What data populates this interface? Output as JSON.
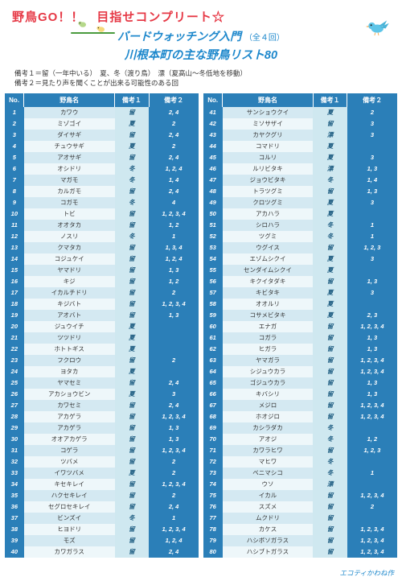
{
  "header": {
    "main_title": "野鳥GO！！　目指せコンプリート☆",
    "sub1": "バードウォッチング入門",
    "sub1_paren": "（全４回）",
    "sub2": "川根本町の主な野鳥リスト80"
  },
  "notes": {
    "line1": "備考１＝留（一年中いる）　夏、冬（渡り鳥）　漂（夏高山〜冬低地を移動）",
    "line2": "備考２＝見たり声を聞くことが出来る可能性のある回"
  },
  "columns": {
    "no": "No.",
    "name": "野鳥名",
    "b1": "備考１",
    "b2": "備考２"
  },
  "rows_left": [
    {
      "no": "1",
      "name": "カワウ",
      "b1": "留",
      "b2": "2, 4"
    },
    {
      "no": "2",
      "name": "ミゾゴイ",
      "b1": "夏",
      "b2": "2"
    },
    {
      "no": "3",
      "name": "ダイサギ",
      "b1": "留",
      "b2": "2, 4"
    },
    {
      "no": "4",
      "name": "チュウサギ",
      "b1": "夏",
      "b2": "2"
    },
    {
      "no": "5",
      "name": "アオサギ",
      "b1": "留",
      "b2": "2, 4"
    },
    {
      "no": "6",
      "name": "オシドリ",
      "b1": "冬",
      "b2": "1, 2, 4"
    },
    {
      "no": "7",
      "name": "マガモ",
      "b1": "冬",
      "b2": "1, 4"
    },
    {
      "no": "8",
      "name": "カルガモ",
      "b1": "留",
      "b2": "2, 4"
    },
    {
      "no": "9",
      "name": "コガモ",
      "b1": "冬",
      "b2": "4"
    },
    {
      "no": "10",
      "name": "トビ",
      "b1": "留",
      "b2": "1, 2, 3, 4"
    },
    {
      "no": "11",
      "name": "オオタカ",
      "b1": "留",
      "b2": "1, 2"
    },
    {
      "no": "12",
      "name": "ノスリ",
      "b1": "冬",
      "b2": "1"
    },
    {
      "no": "13",
      "name": "クマタカ",
      "b1": "留",
      "b2": "1, 3, 4"
    },
    {
      "no": "14",
      "name": "コジュケイ",
      "b1": "留",
      "b2": "1, 2, 4"
    },
    {
      "no": "15",
      "name": "ヤマドリ",
      "b1": "留",
      "b2": "1, 3"
    },
    {
      "no": "16",
      "name": "キジ",
      "b1": "留",
      "b2": "1, 2"
    },
    {
      "no": "17",
      "name": "イカルチドリ",
      "b1": "留",
      "b2": "2"
    },
    {
      "no": "18",
      "name": "キジバト",
      "b1": "留",
      "b2": "1, 2, 3, 4"
    },
    {
      "no": "19",
      "name": "アオバト",
      "b1": "留",
      "b2": "1, 3"
    },
    {
      "no": "20",
      "name": "ジュウイチ",
      "b1": "夏",
      "b2": ""
    },
    {
      "no": "21",
      "name": "ツツドリ",
      "b1": "夏",
      "b2": ""
    },
    {
      "no": "22",
      "name": "ホトトギス",
      "b1": "夏",
      "b2": ""
    },
    {
      "no": "23",
      "name": "フクロウ",
      "b1": "留",
      "b2": "2"
    },
    {
      "no": "24",
      "name": "ヨタカ",
      "b1": "夏",
      "b2": ""
    },
    {
      "no": "25",
      "name": "ヤマセミ",
      "b1": "留",
      "b2": "2, 4"
    },
    {
      "no": "26",
      "name": "アカショウビン",
      "b1": "夏",
      "b2": "3"
    },
    {
      "no": "27",
      "name": "カワセミ",
      "b1": "留",
      "b2": "2, 4"
    },
    {
      "no": "28",
      "name": "アカゲラ",
      "b1": "留",
      "b2": "1, 2, 3, 4"
    },
    {
      "no": "29",
      "name": "アカゲラ",
      "b1": "留",
      "b2": "1, 3"
    },
    {
      "no": "30",
      "name": "オオアカゲラ",
      "b1": "留",
      "b2": "1, 3"
    },
    {
      "no": "31",
      "name": "コゲラ",
      "b1": "留",
      "b2": "1, 2, 3, 4"
    },
    {
      "no": "32",
      "name": "ツバメ",
      "b1": "留",
      "b2": "2"
    },
    {
      "no": "33",
      "name": "イワツバメ",
      "b1": "夏",
      "b2": "2"
    },
    {
      "no": "34",
      "name": "キセキレイ",
      "b1": "留",
      "b2": "1, 2, 3, 4"
    },
    {
      "no": "35",
      "name": "ハクセキレイ",
      "b1": "留",
      "b2": "2"
    },
    {
      "no": "36",
      "name": "セグロセキレイ",
      "b1": "留",
      "b2": "2, 4"
    },
    {
      "no": "37",
      "name": "ビンズイ",
      "b1": "冬",
      "b2": "1"
    },
    {
      "no": "38",
      "name": "ヒヨドリ",
      "b1": "留",
      "b2": "1, 2, 3, 4"
    },
    {
      "no": "39",
      "name": "モズ",
      "b1": "留",
      "b2": "1, 2, 4"
    },
    {
      "no": "40",
      "name": "カワガラス",
      "b1": "留",
      "b2": "2, 4"
    }
  ],
  "rows_right": [
    {
      "no": "41",
      "name": "サンショウクイ",
      "b1": "夏",
      "b2": "2"
    },
    {
      "no": "42",
      "name": "ミソサザイ",
      "b1": "留",
      "b2": "3"
    },
    {
      "no": "43",
      "name": "カヤクグリ",
      "b1": "漂",
      "b2": "3"
    },
    {
      "no": "44",
      "name": "コマドリ",
      "b1": "夏",
      "b2": ""
    },
    {
      "no": "45",
      "name": "コルリ",
      "b1": "夏",
      "b2": "3"
    },
    {
      "no": "46",
      "name": "ルリビタキ",
      "b1": "漂",
      "b2": "1, 3"
    },
    {
      "no": "47",
      "name": "ジョウビタキ",
      "b1": "冬",
      "b2": "1, 4"
    },
    {
      "no": "48",
      "name": "トラツグミ",
      "b1": "留",
      "b2": "1, 3"
    },
    {
      "no": "49",
      "name": "クロツグミ",
      "b1": "夏",
      "b2": "3"
    },
    {
      "no": "50",
      "name": "アカハラ",
      "b1": "夏",
      "b2": ""
    },
    {
      "no": "51",
      "name": "シロハラ",
      "b1": "冬",
      "b2": "1"
    },
    {
      "no": "52",
      "name": "ツグミ",
      "b1": "冬",
      "b2": "1"
    },
    {
      "no": "53",
      "name": "ウグイス",
      "b1": "留",
      "b2": "1, 2, 3"
    },
    {
      "no": "54",
      "name": "エゾムシクイ",
      "b1": "夏",
      "b2": "3"
    },
    {
      "no": "55",
      "name": "センダイムシクイ",
      "b1": "夏",
      "b2": ""
    },
    {
      "no": "56",
      "name": "キクイタダキ",
      "b1": "留",
      "b2": "1, 3"
    },
    {
      "no": "57",
      "name": "キビタキ",
      "b1": "夏",
      "b2": "3"
    },
    {
      "no": "58",
      "name": "オオルリ",
      "b1": "夏",
      "b2": ""
    },
    {
      "no": "59",
      "name": "コサメビタキ",
      "b1": "夏",
      "b2": "2, 3"
    },
    {
      "no": "60",
      "name": "エナガ",
      "b1": "留",
      "b2": "1, 2, 3, 4"
    },
    {
      "no": "61",
      "name": "コガラ",
      "b1": "留",
      "b2": "1, 3"
    },
    {
      "no": "62",
      "name": "ヒガラ",
      "b1": "留",
      "b2": "1, 3"
    },
    {
      "no": "63",
      "name": "ヤマガラ",
      "b1": "留",
      "b2": "1, 2, 3, 4"
    },
    {
      "no": "64",
      "name": "シジュウカラ",
      "b1": "留",
      "b2": "1, 2, 3, 4"
    },
    {
      "no": "65",
      "name": "ゴジュウカラ",
      "b1": "留",
      "b2": "1, 3"
    },
    {
      "no": "66",
      "name": "キバシリ",
      "b1": "留",
      "b2": "1, 3"
    },
    {
      "no": "67",
      "name": "メジロ",
      "b1": "留",
      "b2": "1, 2, 3, 4"
    },
    {
      "no": "68",
      "name": "ホオジロ",
      "b1": "留",
      "b2": "1, 2, 3, 4"
    },
    {
      "no": "69",
      "name": "カシラダカ",
      "b1": "冬",
      "b2": ""
    },
    {
      "no": "70",
      "name": "アオジ",
      "b1": "冬",
      "b2": "1, 2"
    },
    {
      "no": "71",
      "name": "カワラヒワ",
      "b1": "留",
      "b2": "1, 2, 3"
    },
    {
      "no": "72",
      "name": "マヒワ",
      "b1": "冬",
      "b2": ""
    },
    {
      "no": "73",
      "name": "ベニマシコ",
      "b1": "冬",
      "b2": "1"
    },
    {
      "no": "74",
      "name": "ウソ",
      "b1": "漂",
      "b2": ""
    },
    {
      "no": "75",
      "name": "イカル",
      "b1": "留",
      "b2": "1, 2, 3, 4"
    },
    {
      "no": "76",
      "name": "スズメ",
      "b1": "留",
      "b2": "2"
    },
    {
      "no": "77",
      "name": "ムクドリ",
      "b1": "留",
      "b2": ""
    },
    {
      "no": "78",
      "name": "カケス",
      "b1": "留",
      "b2": "1, 2, 3, 4"
    },
    {
      "no": "79",
      "name": "ハシボソガラス",
      "b1": "留",
      "b2": "1, 2, 3, 4"
    },
    {
      "no": "80",
      "name": "ハシブトガラス",
      "b1": "留",
      "b2": "1, 2, 3, 4"
    }
  ],
  "credit": "エコティかわね作",
  "colors": {
    "header_bg": "#2b7fb8",
    "row_odd": "#d4e9f2",
    "row_even": "#eef7fa",
    "b1_bg": "#cfe8f0",
    "title_red": "#e63946",
    "title_blue": "#1e88cc"
  }
}
